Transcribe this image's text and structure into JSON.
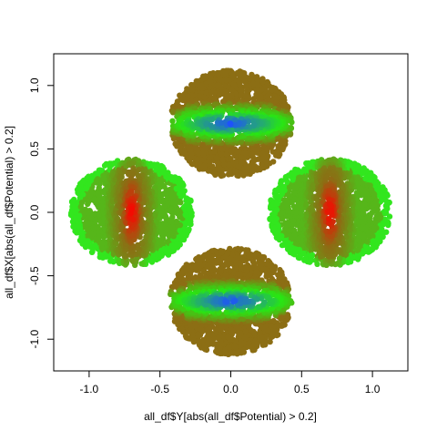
{
  "chart_data": {
    "type": "scatter",
    "title": "",
    "xlabel": "all_df$Y[abs(all_df$Potential) > 0.2]",
    "ylabel": "all_df$X[abs(all_df$Potential) > 0.2]",
    "xlim": [
      -1.25,
      1.25
    ],
    "ylim": [
      -1.25,
      1.25
    ],
    "x_ticks": [
      -1.0,
      -0.5,
      0.0,
      0.5,
      1.0
    ],
    "y_ticks": [
      -1.0,
      -0.5,
      0.0,
      0.5,
      1.0
    ],
    "x_tick_labels": [
      "-1.0",
      "-0.5",
      "0.0",
      "0.5",
      "1.0"
    ],
    "y_tick_labels": [
      "-1.0",
      "-0.5",
      "0.0",
      "0.5",
      "1.0"
    ],
    "grid": false,
    "legend": "none",
    "clusters": [
      {
        "name": "top",
        "center": [
          0.0,
          0.7
        ],
        "rx": 0.43,
        "ry": 0.42,
        "core": "horizontal",
        "core_color": "#1e50ff",
        "mid_color": "#28e614",
        "edge_color": "#8c6e14"
      },
      {
        "name": "bottom",
        "center": [
          0.0,
          -0.7
        ],
        "rx": 0.43,
        "ry": 0.42,
        "core": "horizontal",
        "core_color": "#1e50ff",
        "mid_color": "#28e614",
        "edge_color": "#8c6e14"
      },
      {
        "name": "left",
        "center": [
          -0.7,
          0.0
        ],
        "rx": 0.43,
        "ry": 0.42,
        "core": "vertical",
        "core_color": "#ff0000",
        "mid_color": "#8c6e14",
        "edge_color": "#32e61e"
      },
      {
        "name": "right",
        "center": [
          0.7,
          0.0
        ],
        "rx": 0.43,
        "ry": 0.42,
        "core": "vertical",
        "core_color": "#ff0000",
        "mid_color": "#8c6e14",
        "edge_color": "#32e61e"
      }
    ]
  }
}
